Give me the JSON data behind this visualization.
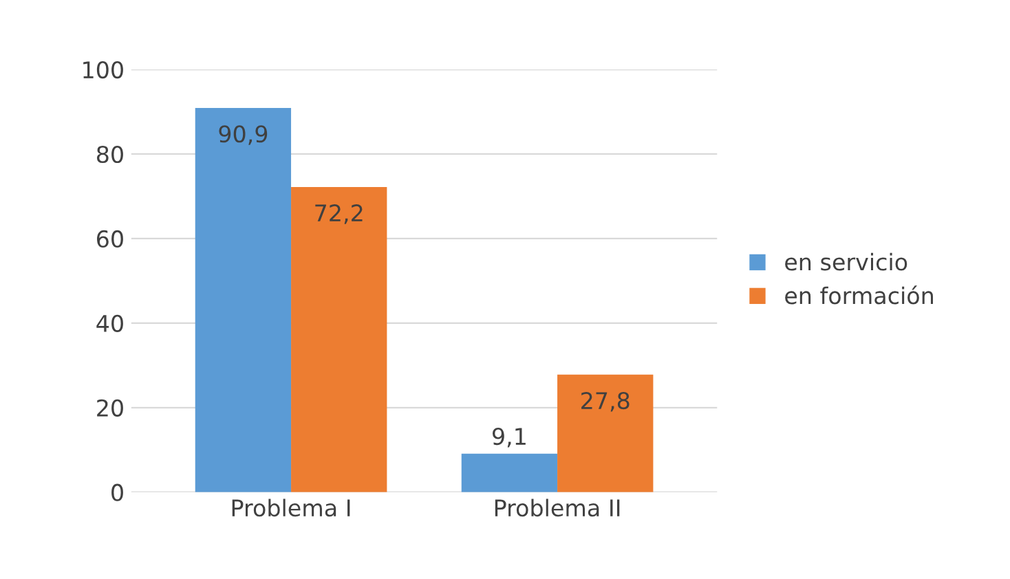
{
  "chart_data": {
    "type": "bar",
    "categories": [
      "Problema I",
      "Problema II"
    ],
    "series": [
      {
        "name": "en servicio",
        "color": "#5b9bd5",
        "values": [
          90.9,
          9.1
        ],
        "value_labels": [
          "90,9",
          "9,1"
        ]
      },
      {
        "name": "en formación",
        "color": "#ed7d31",
        "values": [
          72.2,
          27.8
        ],
        "value_labels": [
          "72,2",
          "27,8"
        ]
      }
    ],
    "ylim": [
      0,
      100
    ],
    "yticks": [
      0,
      20,
      40,
      60,
      80,
      100
    ],
    "grid": "y",
    "legend": "right"
  }
}
